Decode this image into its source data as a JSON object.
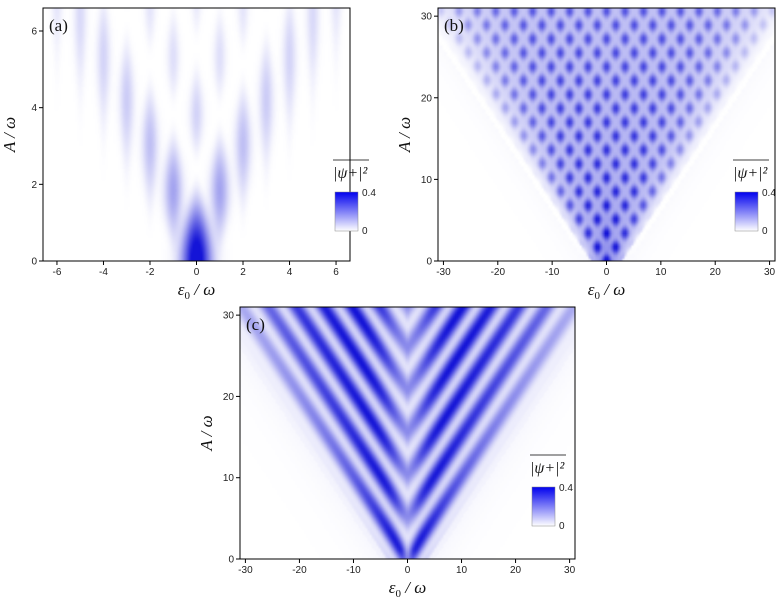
{
  "chart_data": [
    {
      "type": "heatmap",
      "panel_label": "(a)",
      "xlabel": "ε0 / ω",
      "ylabel": "A / ω",
      "xlim": [
        -6.6,
        6.6
      ],
      "ylim": [
        0,
        6.6
      ],
      "xticks": [
        -6,
        -4,
        -2,
        0,
        2,
        4,
        6
      ],
      "yticks": [
        0,
        2,
        4,
        6
      ],
      "colorbar": {
        "label": "|ψ+|²",
        "min": 0,
        "max": 0.4,
        "ticks": [
          "0",
          "0.4"
        ]
      },
      "colors": {
        "high": "#1a1aff",
        "low": "#ffffff"
      },
      "resonance_lines_x": [
        -6,
        -5,
        -4,
        -3,
        -2,
        -1,
        0,
        1,
        2,
        3,
        4,
        5,
        6
      ],
      "max_value_region": "near ε0/ω = 0, small A/ω"
    },
    {
      "type": "heatmap",
      "panel_label": "(b)",
      "xlabel": "ε0 / ω",
      "ylabel": "A / ω",
      "xlim": [
        -31,
        31
      ],
      "ylim": [
        0,
        31
      ],
      "xticks": [
        -30,
        -20,
        -10,
        0,
        10,
        20,
        30
      ],
      "yticks": [
        0,
        10,
        20,
        30
      ],
      "colorbar": {
        "label": "|ψ+|²",
        "min": 0,
        "max": 0.4,
        "ticks": [
          "0",
          "0.4"
        ]
      },
      "colors": {
        "high": "#1a1aff",
        "low": "#ffffff"
      },
      "pattern": "V-shaped region |ε0/ω| < A/ω with dense resonance lattice"
    },
    {
      "type": "heatmap",
      "panel_label": "(c)",
      "xlabel": "ε0 / ω",
      "ylabel": "A / ω",
      "xlim": [
        -31,
        31
      ],
      "ylim": [
        0,
        31
      ],
      "xticks": [
        -30,
        -20,
        -10,
        0,
        10,
        20,
        30
      ],
      "yticks": [
        0,
        10,
        20,
        30
      ],
      "colorbar": {
        "label": "|ψ+|²",
        "min": 0,
        "max": 0.4,
        "ticks": [
          "0",
          "0.4"
        ]
      },
      "colors": {
        "high": "#1a1aff",
        "low": "#ffffff"
      },
      "pattern": "V-shaped region with smooth diagonal fringes"
    }
  ]
}
